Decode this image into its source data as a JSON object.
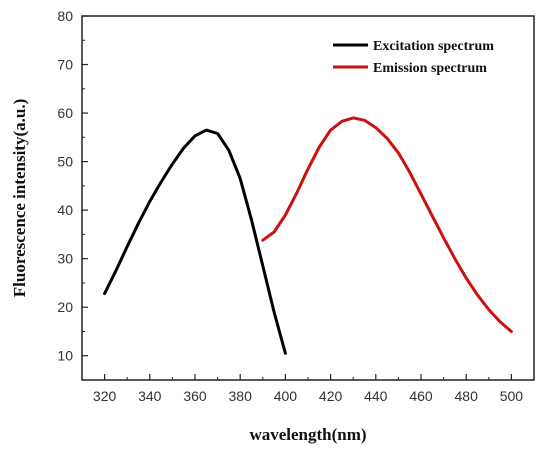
{
  "chart_data": {
    "type": "line",
    "xlabel": "wavelength(nm)",
    "ylabel": "Fluorescence intensity(a.u.)",
    "xlim": [
      310,
      510
    ],
    "ylim": [
      5,
      80
    ],
    "x_ticks": [
      320,
      340,
      360,
      380,
      400,
      420,
      440,
      460,
      480,
      500
    ],
    "y_ticks": [
      10,
      20,
      30,
      40,
      50,
      60,
      70,
      80
    ],
    "legend_position": "top-right",
    "grid": false,
    "series": [
      {
        "name": "Excitation spectrum",
        "color": "#000000",
        "x": [
          320,
          325,
          330,
          335,
          340,
          345,
          350,
          355,
          360,
          365,
          370,
          375,
          380,
          385,
          390,
          395,
          400
        ],
        "y": [
          22.8,
          27.5,
          32.5,
          37.3,
          41.8,
          45.8,
          49.5,
          52.8,
          55.3,
          56.5,
          55.8,
          52.3,
          46.5,
          38.0,
          28.5,
          19.0,
          10.5
        ]
      },
      {
        "name": "Emission spectrum",
        "color": "#cc1111",
        "x": [
          390,
          395,
          400,
          405,
          410,
          415,
          420,
          425,
          430,
          435,
          440,
          445,
          450,
          455,
          460,
          465,
          470,
          475,
          480,
          485,
          490,
          495,
          500
        ],
        "y": [
          33.8,
          35.5,
          39.0,
          43.5,
          48.5,
          53.0,
          56.5,
          58.3,
          59.0,
          58.5,
          57.0,
          54.8,
          51.8,
          47.8,
          43.3,
          38.8,
          34.3,
          30.0,
          26.0,
          22.5,
          19.5,
          17.0,
          15.0
        ]
      }
    ]
  }
}
